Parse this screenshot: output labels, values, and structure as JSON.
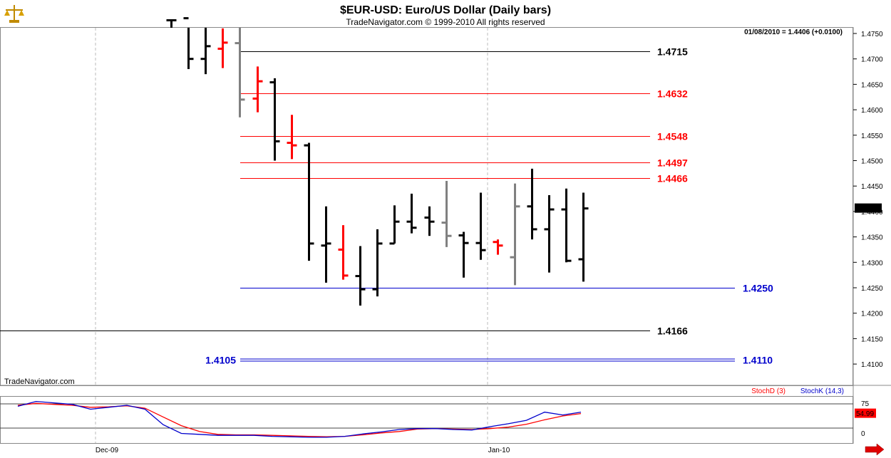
{
  "window": {
    "title": "$EUR-USD:  Euro/US Dollar  (Daily bars)",
    "subtitle": "TradeNavigator.com © 1999-2010 All rights reserved",
    "watermark": "TradeNavigator.com",
    "last_quote": "01/08/2010 = 1.4406 (+0.0100)",
    "current_price_tag": "1.4406",
    "logo_icon": "scales-icon",
    "nav_icon": "arrow-right-icon"
  },
  "colors": {
    "up_bar": "#000000",
    "down_bar": "#ff0000",
    "neutral_bar": "#808080",
    "resistance": "#ff0000",
    "support": "#0000cc",
    "stochD": "#ff0000",
    "stochK": "#0000cc"
  },
  "chart_data": [
    {
      "type": "ohlc",
      "title": "$EUR-USD:  Euro/US Dollar  (Daily bars)",
      "ylim": [
        1.4065,
        1.4775
      ],
      "y_ticks": [
        "1.4750",
        "1.4700",
        "1.4650",
        "1.4600",
        "1.4550",
        "1.4500",
        "1.4450",
        "1.4400",
        "1.4350",
        "1.4300",
        "1.4250",
        "1.4200",
        "1.4150",
        "1.4100"
      ],
      "x_labels": [
        "Dec-09",
        "Jan-10"
      ],
      "bars": [
        {
          "high": 1.4777,
          "low": 1.4775,
          "open": 1.4776,
          "close": 1.4776,
          "color": "black"
        },
        {
          "high": 1.479,
          "low": 1.468,
          "open": 1.478,
          "close": 1.47,
          "color": "black"
        },
        {
          "high": 1.479,
          "low": 1.467,
          "open": 1.47,
          "close": 1.4725,
          "color": "black"
        },
        {
          "high": 1.476,
          "low": 1.4682,
          "open": 1.472,
          "close": 1.4732,
          "color": "red"
        },
        {
          "high": 1.4775,
          "low": 1.4585,
          "open": 1.4731,
          "close": 1.462,
          "color": "gray"
        },
        {
          "high": 1.4685,
          "low": 1.4595,
          "open": 1.4622,
          "close": 1.4656,
          "color": "red"
        },
        {
          "high": 1.4662,
          "low": 1.45,
          "open": 1.4654,
          "close": 1.4538,
          "color": "black"
        },
        {
          "high": 1.459,
          "low": 1.4503,
          "open": 1.4535,
          "close": 1.453,
          "color": "red"
        },
        {
          "high": 1.4535,
          "low": 1.4303,
          "open": 1.453,
          "close": 1.4337,
          "color": "black"
        },
        {
          "high": 1.441,
          "low": 1.426,
          "open": 1.4333,
          "close": 1.4337,
          "color": "black"
        },
        {
          "high": 1.4373,
          "low": 1.4266,
          "open": 1.4325,
          "close": 1.4274,
          "color": "red"
        },
        {
          "high": 1.4332,
          "low": 1.4215,
          "open": 1.4273,
          "close": 1.4247,
          "color": "black"
        },
        {
          "high": 1.4365,
          "low": 1.4233,
          "open": 1.4247,
          "close": 1.4337,
          "color": "black"
        },
        {
          "high": 1.4412,
          "low": 1.4337,
          "open": 1.4337,
          "close": 1.438,
          "color": "black"
        },
        {
          "high": 1.4435,
          "low": 1.4357,
          "open": 1.438,
          "close": 1.4368,
          "color": "black"
        },
        {
          "high": 1.441,
          "low": 1.4352,
          "open": 1.4388,
          "close": 1.438,
          "color": "black"
        },
        {
          "high": 1.446,
          "low": 1.433,
          "open": 1.4378,
          "close": 1.4352,
          "color": "gray"
        },
        {
          "high": 1.436,
          "low": 1.427,
          "open": 1.4353,
          "close": 1.4338,
          "color": "black"
        },
        {
          "high": 1.4437,
          "low": 1.4305,
          "open": 1.4338,
          "close": 1.4324,
          "color": "black"
        },
        {
          "high": 1.4345,
          "low": 1.4315,
          "open": 1.434,
          "close": 1.4333,
          "color": "red"
        },
        {
          "high": 1.4455,
          "low": 1.4255,
          "open": 1.431,
          "close": 1.441,
          "color": "gray"
        },
        {
          "high": 1.4484,
          "low": 1.4345,
          "open": 1.441,
          "close": 1.4365,
          "color": "black"
        },
        {
          "high": 1.4432,
          "low": 1.428,
          "open": 1.4365,
          "close": 1.4404,
          "color": "black"
        },
        {
          "high": 1.4445,
          "low": 1.43,
          "open": 1.4404,
          "close": 1.4303,
          "color": "black"
        },
        {
          "high": 1.4437,
          "low": 1.4262,
          "open": 1.4306,
          "close": 1.4406,
          "color": "black"
        }
      ],
      "levels": [
        {
          "value": 1.4715,
          "label": "1.4715",
          "color": "#000000",
          "style": "single",
          "start_bar": 4,
          "label_side": "right-inner"
        },
        {
          "value": 1.4632,
          "label": "1.4632",
          "color": "#ff0000",
          "style": "single",
          "start_bar": 4,
          "label_side": "right-inner"
        },
        {
          "value": 1.4548,
          "label": "1.4548",
          "color": "#ff0000",
          "style": "single",
          "start_bar": 4,
          "label_side": "right-inner"
        },
        {
          "value": 1.4497,
          "label": "1.4497",
          "color": "#ff0000",
          "style": "single",
          "start_bar": 4,
          "label_side": "right-inner"
        },
        {
          "value": 1.4466,
          "label": "1.4466",
          "color": "#ff0000",
          "style": "single",
          "start_bar": 4,
          "label_side": "right-inner"
        },
        {
          "value": 1.425,
          "label": "1.4250",
          "color": "#0000cc",
          "style": "single",
          "start_bar": 4,
          "label_side": "right-outer"
        },
        {
          "value": 1.4166,
          "label": "1.4166",
          "color": "#000000",
          "style": "single",
          "start_bar": -1,
          "label_side": "right-inner"
        },
        {
          "value": 1.4108,
          "label": "1.4110",
          "label_left": "1.4105",
          "color": "#0000cc",
          "style": "double",
          "start_bar": 4,
          "label_side": "right-outer"
        }
      ]
    },
    {
      "type": "line",
      "title": "Stochastic",
      "ylim": [
        0,
        100
      ],
      "y_ticks": [
        "75",
        "0"
      ],
      "reference_lines": [
        75,
        25
      ],
      "legend": [
        "StochD (3)",
        "StochK (14,3)"
      ],
      "last_value_label": "54.99",
      "series": [
        {
          "name": "StochD (3)",
          "color": "red",
          "values": [
            72,
            76,
            74,
            72,
            68,
            69,
            71,
            66,
            48,
            30,
            18,
            12,
            11,
            11,
            10,
            9,
            8,
            7,
            8,
            11,
            15,
            18,
            23,
            24,
            23,
            22,
            24,
            27,
            33,
            42,
            50,
            54.99
          ]
        },
        {
          "name": "StochK (14,3)",
          "color": "blue",
          "values": [
            70,
            80,
            77,
            74,
            64,
            68,
            72,
            64,
            32,
            14,
            12,
            10,
            10,
            10,
            8,
            7,
            6,
            6,
            8,
            13,
            17,
            22,
            24,
            24,
            22,
            21,
            28,
            34,
            41,
            58,
            52,
            58
          ]
        }
      ]
    }
  ]
}
